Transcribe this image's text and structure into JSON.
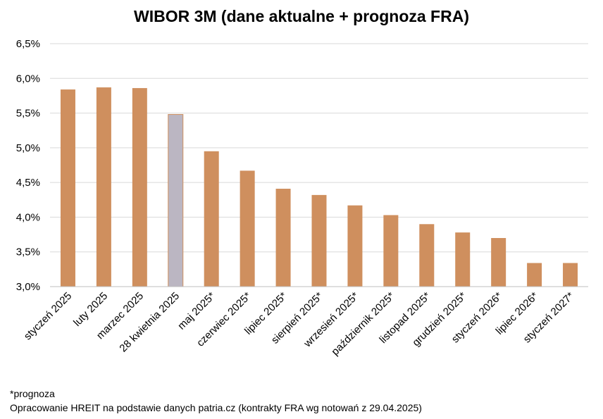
{
  "chart_data": {
    "type": "bar",
    "title": "WIBOR 3M (dane aktualne + prognoza FRA)",
    "xlabel": "",
    "ylabel": "",
    "categories": [
      "styczeń 2025",
      "luty 2025",
      "marzec 2025",
      "28 kwietnia 2025",
      "maj 2025*",
      "czerwiec 2025*",
      "lipiec 2025*",
      "sierpień 2025*",
      "wrzesień 2025*",
      "październik 2025*",
      "listopad 2025*",
      "grudzień 2025*",
      "styczeń 2026*",
      "lipiec 2026*",
      "styczeń 2027*"
    ],
    "values": [
      5.84,
      5.87,
      5.86,
      5.48,
      4.95,
      4.67,
      4.41,
      4.32,
      4.17,
      4.03,
      3.9,
      3.78,
      3.7,
      3.34,
      3.34
    ],
    "highlight_index": 3,
    "ylim": [
      3.0,
      6.5
    ],
    "yticks": [
      "3,0%",
      "3,5%",
      "4,0%",
      "4,5%",
      "5,0%",
      "5,5%",
      "6,0%",
      "6,5%"
    ],
    "ytick_values": [
      3.0,
      3.5,
      4.0,
      4.5,
      5.0,
      5.5,
      6.0,
      6.5
    ],
    "grid": true,
    "legend": "none",
    "colors": {
      "bar": "#cf8f5e",
      "bar_highlight": "#bbb6c2",
      "grid": "#d9d9d9",
      "axis": "#bfbfbf"
    }
  },
  "notes": {
    "line1": "*prognoza",
    "line2": "Opracowanie HREIT na podstawie danych patria.cz (kontrakty FRA wg notowań z 29.04.2025)"
  }
}
